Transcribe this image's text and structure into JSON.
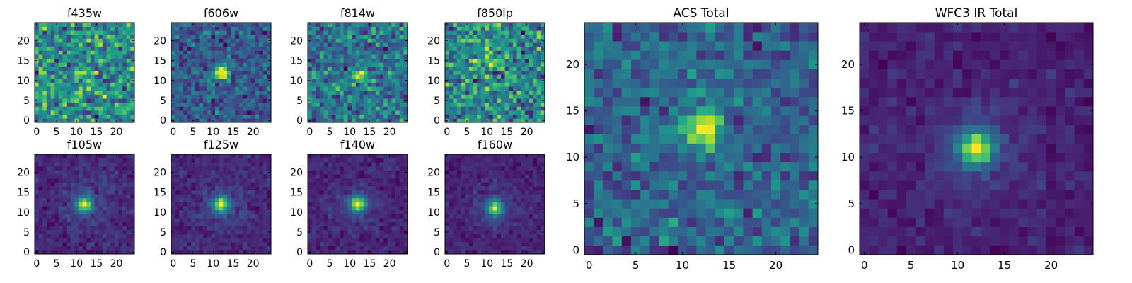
{
  "chart_data": [
    {
      "type": "heatmap",
      "title": "f435w",
      "source_pattern": "noise",
      "grid_size": 25,
      "xticks": [
        0,
        5,
        10,
        15,
        20
      ],
      "yticks": [
        0,
        5,
        10,
        15,
        20
      ],
      "xlim": [
        -0.5,
        24.5
      ],
      "ylim": [
        -0.5,
        24.5
      ],
      "colormap": "viridis",
      "peak_position": [
        12,
        12
      ],
      "peak_strength": 0.15,
      "seed": 11
    },
    {
      "type": "heatmap",
      "title": "f606w",
      "source_pattern": "weak-source",
      "grid_size": 25,
      "xticks": [
        0,
        5,
        10,
        15,
        20
      ],
      "yticks": [
        0,
        5,
        10,
        15,
        20
      ],
      "xlim": [
        -0.5,
        24.5
      ],
      "ylim": [
        -0.5,
        24.5
      ],
      "colormap": "viridis",
      "peak_position": [
        12,
        12
      ],
      "peak_strength": 0.55,
      "seed": 23
    },
    {
      "type": "heatmap",
      "title": "f814w",
      "source_pattern": "noise",
      "grid_size": 25,
      "xticks": [
        0,
        5,
        10,
        15,
        20
      ],
      "yticks": [
        0,
        5,
        10,
        15,
        20
      ],
      "xlim": [
        -0.5,
        24.5
      ],
      "ylim": [
        -0.5,
        24.5
      ],
      "colormap": "viridis",
      "peak_position": [
        13,
        11
      ],
      "peak_strength": 0.3,
      "seed": 37
    },
    {
      "type": "heatmap",
      "title": "f850lp",
      "source_pattern": "noise",
      "grid_size": 25,
      "xticks": [
        0,
        5,
        10,
        15,
        20
      ],
      "yticks": [
        0,
        5,
        10,
        15,
        20
      ],
      "xlim": [
        -0.5,
        24.5
      ],
      "ylim": [
        -0.5,
        24.5
      ],
      "colormap": "viridis",
      "peak_position": [
        10,
        15
      ],
      "peak_strength": 0.25,
      "seed": 41
    },
    {
      "type": "heatmap",
      "title": "f105w",
      "source_pattern": "source",
      "grid_size": 25,
      "xticks": [
        0,
        5,
        10,
        15,
        20
      ],
      "yticks": [
        0,
        5,
        10,
        15,
        20
      ],
      "xlim": [
        -0.5,
        24.5
      ],
      "ylim": [
        -0.5,
        24.5
      ],
      "colormap": "viridis",
      "peak_position": [
        12,
        12
      ],
      "peak_strength": 0.75,
      "seed": 53
    },
    {
      "type": "heatmap",
      "title": "f125w",
      "source_pattern": "source",
      "grid_size": 25,
      "xticks": [
        0,
        5,
        10,
        15,
        20
      ],
      "yticks": [
        0,
        5,
        10,
        15,
        20
      ],
      "xlim": [
        -0.5,
        24.5
      ],
      "ylim": [
        -0.5,
        24.5
      ],
      "colormap": "viridis",
      "peak_position": [
        12,
        12
      ],
      "peak_strength": 0.8,
      "seed": 67
    },
    {
      "type": "heatmap",
      "title": "f140w",
      "source_pattern": "source",
      "grid_size": 25,
      "xticks": [
        0,
        5,
        10,
        15,
        20
      ],
      "yticks": [
        0,
        5,
        10,
        15,
        20
      ],
      "xlim": [
        -0.5,
        24.5
      ],
      "ylim": [
        -0.5,
        24.5
      ],
      "colormap": "viridis",
      "peak_position": [
        12,
        12
      ],
      "peak_strength": 0.85,
      "seed": 71
    },
    {
      "type": "heatmap",
      "title": "f160w",
      "source_pattern": "source",
      "grid_size": 25,
      "xticks": [
        0,
        5,
        10,
        15,
        20
      ],
      "yticks": [
        0,
        5,
        10,
        15,
        20
      ],
      "xlim": [
        -0.5,
        24.5
      ],
      "ylim": [
        -0.5,
        24.5
      ],
      "colormap": "viridis",
      "peak_position": [
        12,
        11
      ],
      "peak_strength": 0.85,
      "seed": 83
    },
    {
      "type": "heatmap",
      "title": "ACS Total",
      "source_pattern": "weak-source",
      "grid_size": 25,
      "xticks": [
        0,
        5,
        10,
        15,
        20
      ],
      "yticks": [
        0,
        5,
        10,
        15,
        20
      ],
      "xlim": [
        -0.5,
        24.5
      ],
      "ylim": [
        -0.5,
        24.5
      ],
      "colormap": "viridis",
      "peak_position": [
        12,
        13
      ],
      "peak_strength": 0.6,
      "seed": 97
    },
    {
      "type": "heatmap",
      "title": "WFC3 IR Total",
      "source_pattern": "source",
      "grid_size": 25,
      "xticks": [
        0,
        5,
        10,
        15,
        20
      ],
      "yticks": [
        0,
        5,
        10,
        15,
        20
      ],
      "xlim": [
        -0.5,
        24.5
      ],
      "ylim": [
        -0.5,
        24.5
      ],
      "colormap": "viridis",
      "peak_position": [
        12,
        11
      ],
      "peak_strength": 0.95,
      "seed": 101
    }
  ]
}
